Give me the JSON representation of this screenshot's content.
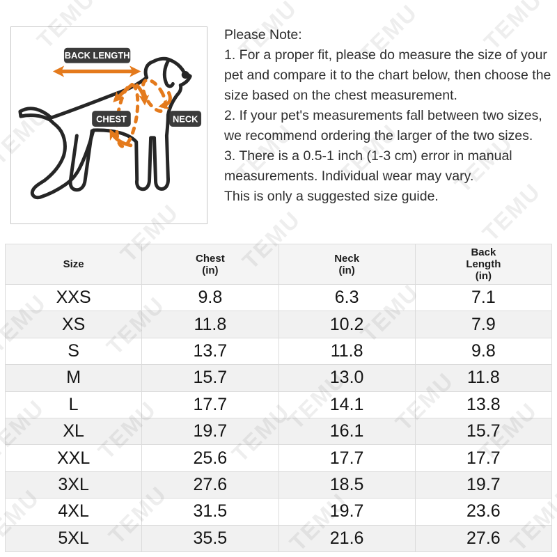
{
  "watermark": {
    "text": "TEMU"
  },
  "diagram": {
    "back_length_label": "BACK LENGTH",
    "chest_label": "CHEST",
    "neck_label": "NECK",
    "colors": {
      "accent_orange": "#e47a1c",
      "label_bg": "#3b3b3b",
      "label_text": "#ffffff",
      "outline": "#262626"
    }
  },
  "note": {
    "title": "Please Note:",
    "items": [
      "1. For a proper fit, please do measure the size of your pet and compare it to the chart below, then choose the size based on the chest measurement.",
      "2. If your pet's measurements fall between two sizes, we recommend ordering the larger of the two sizes.",
      "3. There is a 0.5-1 inch (1-3 cm) error in manual measurements. Individual wear may vary."
    ],
    "footer": "This is only a suggested size guide."
  },
  "table": {
    "headers": [
      [
        "Size"
      ],
      [
        "Chest",
        "(in)"
      ],
      [
        "Neck",
        "(in)"
      ],
      [
        "Back",
        "Length",
        "(in)"
      ]
    ],
    "rows": [
      [
        "XXS",
        "9.8",
        "6.3",
        "7.1"
      ],
      [
        "XS",
        "11.8",
        "10.2",
        "7.9"
      ],
      [
        "S",
        "13.7",
        "11.8",
        "9.8"
      ],
      [
        "M",
        "15.7",
        "13.0",
        "11.8"
      ],
      [
        "L",
        "17.7",
        "14.1",
        "13.8"
      ],
      [
        "XL",
        "19.7",
        "16.1",
        "15.7"
      ],
      [
        "XXL",
        "25.6",
        "17.7",
        "17.7"
      ],
      [
        "3XL",
        "27.6",
        "18.5",
        "19.7"
      ],
      [
        "4XL",
        "31.5",
        "19.7",
        "23.6"
      ],
      [
        "5XL",
        "35.5",
        "21.6",
        "27.6"
      ]
    ]
  }
}
